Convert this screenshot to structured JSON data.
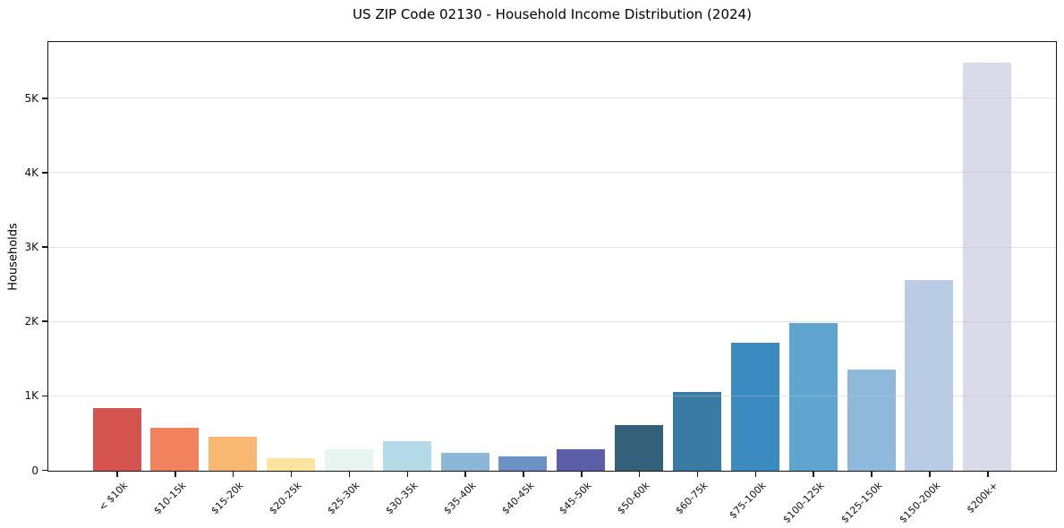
{
  "chart_data": {
    "type": "bar",
    "title": "US ZIP Code 02130 - Household Income Distribution (2024)",
    "xlabel": "",
    "ylabel": "Households",
    "categories": [
      "< $10k",
      "$10-15k",
      "$15-20k",
      "$20-25k",
      "$25-30k",
      "$30-35k",
      "$35-40k",
      "$40-45k",
      "$45-50k",
      "$50-60k",
      "$60-75k",
      "$75-100k",
      "$100-125k",
      "$125-150k",
      "$150-200k",
      "$200k+"
    ],
    "values": [
      840,
      575,
      455,
      170,
      290,
      400,
      235,
      195,
      285,
      615,
      1060,
      1720,
      1980,
      1355,
      2560,
      5490
    ],
    "bar_colors": [
      "#d6544f",
      "#f0835e",
      "#f9b871",
      "#fbe3a0",
      "#e8f4f0",
      "#b4d9e7",
      "#8cb8d7",
      "#6d92c5",
      "#5a5fa8",
      "#35607a",
      "#3a7ba3",
      "#3a8ac0",
      "#5fa5cf",
      "#8fb9da",
      "#b9cce3",
      "#d9dbe8"
    ],
    "ylim": [
      0,
      5750
    ],
    "yticks": [
      {
        "value": 0,
        "label": "0"
      },
      {
        "value": 1000,
        "label": "1K"
      },
      {
        "value": 2000,
        "label": "2K"
      },
      {
        "value": 3000,
        "label": "3K"
      },
      {
        "value": 4000,
        "label": "4K"
      },
      {
        "value": 5000,
        "label": "5K"
      }
    ],
    "grid": "horizontal-light",
    "legend": "none",
    "x_tick_rotation_deg": 45
  }
}
